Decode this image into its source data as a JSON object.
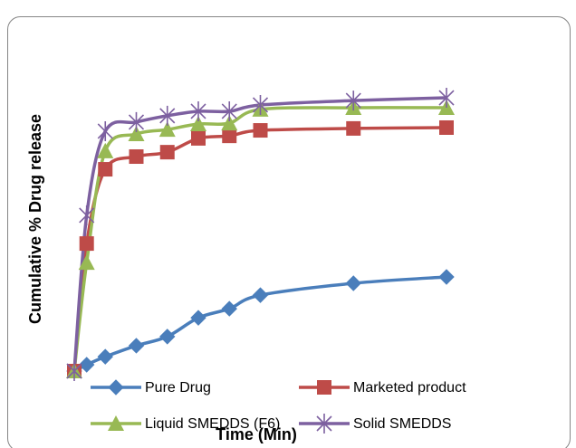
{
  "chart_data": {
    "type": "line",
    "x_label": "Time (Min)",
    "y_label": "Cumulative % Drug release",
    "x": [
      0,
      2,
      5,
      10,
      15,
      20,
      25,
      30,
      45,
      60
    ],
    "xlim": [
      0,
      60
    ],
    "ylim": [
      0,
      100
    ],
    "series": [
      {
        "name": "Pure Drug",
        "color": "#4a7ebb",
        "marker": "diamond",
        "values": [
          0,
          2.3,
          5.2,
          9.2,
          12.5,
          19.3,
          22.6,
          27.5,
          31.8,
          34.1
        ]
      },
      {
        "name": "Marketed product",
        "color": "#be4b48",
        "marker": "square",
        "values": [
          0,
          46.2,
          73.1,
          77.7,
          79.3,
          84.3,
          85.2,
          87.2,
          87.9,
          88.2
        ]
      },
      {
        "name": "Liquid SMEDDS (F6)",
        "color": "#98b954",
        "marker": "triangle",
        "values": [
          0,
          39.3,
          79.7,
          85.9,
          87.5,
          89.5,
          89.8,
          94.8,
          95.4,
          95.4
        ]
      },
      {
        "name": "Solid SMEDDS",
        "color": "#7d60a0",
        "marker": "star",
        "values": [
          0,
          56.4,
          86.9,
          90.2,
          92.5,
          94.1,
          94.1,
          96.4,
          98,
          99
        ]
      }
    ]
  }
}
